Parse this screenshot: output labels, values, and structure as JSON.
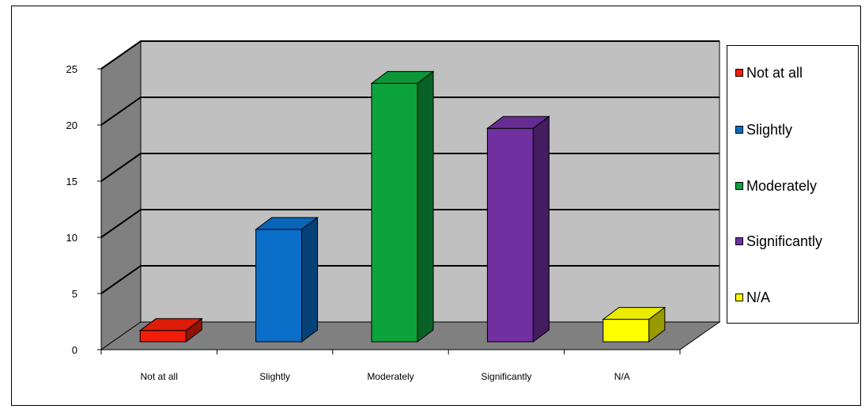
{
  "chart_data": {
    "type": "bar",
    "style": "3d-column",
    "categories": [
      "Not at all",
      "Slightly",
      "Moderately",
      "Significantly",
      "N/A"
    ],
    "values": [
      1,
      10,
      23,
      19,
      2
    ],
    "colors": [
      "#f01e0a",
      "#0a6ec8",
      "#0ca33c",
      "#7030a0",
      "#ffff00"
    ],
    "ylim": [
      0,
      25
    ],
    "yticks": [
      0,
      5,
      10,
      15,
      20,
      25
    ],
    "grid": true,
    "legend": {
      "position": "right",
      "entries": [
        "Not at all",
        "Slightly",
        "Moderately",
        "Significantly",
        "N/A"
      ]
    },
    "title": "",
    "xlabel": "",
    "ylabel": ""
  }
}
